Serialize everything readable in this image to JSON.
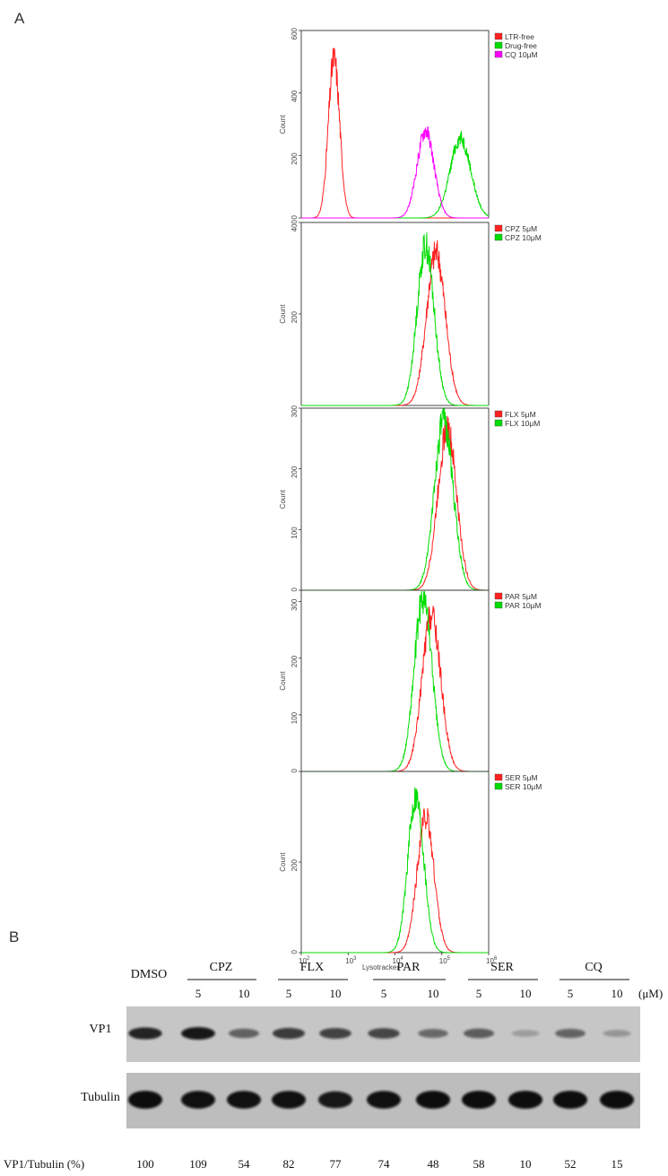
{
  "panel_a_label": "A",
  "panel_b_label": "B",
  "chart_data": [
    {
      "type": "line",
      "panel": "A",
      "xlabel": "Lysotracker",
      "x_scale": "log",
      "x_ticks": [
        {
          "value": 100,
          "base": "10",
          "exp": "2"
        },
        {
          "value": 1000,
          "base": "10",
          "exp": "3"
        },
        {
          "value": 10000,
          "base": "10",
          "exp": "4"
        },
        {
          "value": 100000,
          "base": "10",
          "exp": "5"
        },
        {
          "value": 1000000,
          "base": "10",
          "exp": "6"
        }
      ],
      "xlim": [
        100,
        1000000
      ],
      "histograms": [
        {
          "ylabel": "Count",
          "ylim": [
            0,
            600
          ],
          "yticks": [
            "0",
            "200",
            "400",
            "600"
          ],
          "series": [
            {
              "name": "LTR-free",
              "color": "#ff2020",
              "peak_x": 500,
              "peak_y": 510,
              "spread": 0.12
            },
            {
              "name": "Drug-free",
              "color": "#00dd00",
              "peak_x": 250000,
              "peak_y": 255,
              "spread": 0.22
            },
            {
              "name": "CQ 10μM",
              "color": "#ff00ff",
              "peak_x": 45000,
              "peak_y": 280,
              "spread": 0.18
            }
          ]
        },
        {
          "ylabel": "Count",
          "ylim": [
            0,
            400
          ],
          "yticks": [
            "",
            "200",
            "400"
          ],
          "series": [
            {
              "name": "CPZ 5μM",
              "color": "#ff2020",
              "peak_x": 75000,
              "peak_y": 335,
              "spread": 0.2
            },
            {
              "name": "CPZ 10μM",
              "color": "#00dd00",
              "peak_x": 45000,
              "peak_y": 350,
              "spread": 0.18
            }
          ]
        },
        {
          "ylabel": "Count",
          "ylim": [
            0,
            300
          ],
          "yticks": [
            "0",
            "100",
            "200",
            "300"
          ],
          "series": [
            {
              "name": "FLX 5μM",
              "color": "#ff2020",
              "peak_x": 130000,
              "peak_y": 265,
              "spread": 0.2
            },
            {
              "name": "FLX 10μM",
              "color": "#00dd00",
              "peak_x": 110000,
              "peak_y": 280,
              "spread": 0.2
            }
          ]
        },
        {
          "ylabel": "Count",
          "ylim": [
            0,
            320
          ],
          "yticks": [
            "0",
            "100",
            "200",
            "300"
          ],
          "series": [
            {
              "name": "PAR 5μM",
              "color": "#ff2020",
              "peak_x": 60000,
              "peak_y": 275,
              "spread": 0.2
            },
            {
              "name": "PAR 10μM",
              "color": "#00dd00",
              "peak_x": 40000,
              "peak_y": 305,
              "spread": 0.19
            }
          ]
        },
        {
          "ylabel": "Count",
          "ylim": [
            0,
            400
          ],
          "yticks": [
            "0",
            "200"
          ],
          "series": [
            {
              "name": "SER 5μM",
              "color": "#ff2020",
              "peak_x": 45000,
              "peak_y": 300,
              "spread": 0.18
            },
            {
              "name": "SER 10μM",
              "color": "#00dd00",
              "peak_x": 28000,
              "peak_y": 345,
              "spread": 0.17
            }
          ]
        }
      ]
    },
    {
      "type": "table",
      "panel": "B",
      "dmso_label": "DMSO",
      "groups": [
        {
          "name": "CPZ",
          "doses": [
            "5",
            "10"
          ]
        },
        {
          "name": "FLX",
          "doses": [
            "5",
            "10"
          ]
        },
        {
          "name": "PAR",
          "doses": [
            "5",
            "10"
          ]
        },
        {
          "name": "SER",
          "doses": [
            "5",
            "10"
          ]
        },
        {
          "name": "CQ",
          "doses": [
            "5",
            "10"
          ]
        }
      ],
      "unit": "(μM)",
      "rows": [
        "VP1",
        "Tubulin"
      ],
      "ratio_label": "VP1/Tubulin (%)",
      "ratio_values": [
        100,
        109,
        54,
        82,
        77,
        74,
        48,
        58,
        10,
        52,
        15
      ],
      "tubulin_intensity": [
        1.0,
        0.95,
        0.95,
        0.95,
        0.8,
        0.95,
        1.0,
        1.0,
        1.0,
        1.0,
        1.0
      ]
    }
  ]
}
